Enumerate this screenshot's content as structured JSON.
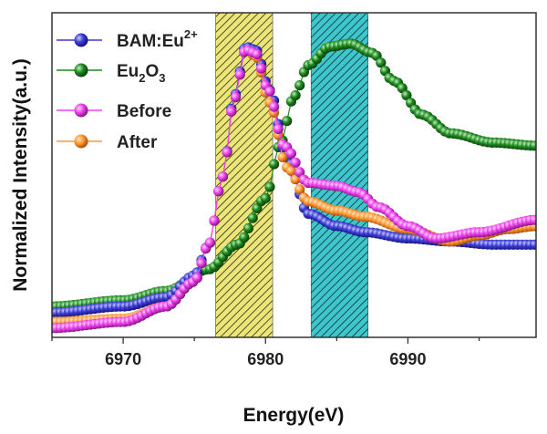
{
  "chart_data": {
    "type": "scatter",
    "xlabel": "Energy(eV)",
    "ylabel": "Normalized Intensity(a.u.)",
    "xlim": [
      6965,
      6999
    ],
    "ylim": [
      0,
      1.05
    ],
    "xticks": [
      6970,
      6980,
      6990
    ],
    "xtick_labels": [
      "6970",
      "6980",
      "6990"
    ],
    "grid": false,
    "legend_position": "top-left",
    "shaded_regions": [
      {
        "name": "yellow-band",
        "from": 6976.5,
        "to": 6980.5,
        "color": "#e8e070",
        "hatch": true
      },
      {
        "name": "cyan-band",
        "from": 6983.2,
        "to": 6987.2,
        "color": "#39c2c8",
        "hatch": true
      }
    ],
    "series": [
      {
        "name": "BAM:Eu2+",
        "label_main": "BAM:Eu",
        "label_sup": "2+",
        "color": "#3b3bd6",
        "points": [
          [
            6965,
            0.08
          ],
          [
            6970,
            0.1
          ],
          [
            6973,
            0.13
          ],
          [
            6975,
            0.2
          ],
          [
            6976,
            0.3
          ],
          [
            6977,
            0.52
          ],
          [
            6977.8,
            0.78
          ],
          [
            6978.6,
            0.94
          ],
          [
            6979.3,
            0.93
          ],
          [
            6980.3,
            0.8
          ],
          [
            6981.5,
            0.58
          ],
          [
            6983,
            0.4
          ],
          [
            6985,
            0.36
          ],
          [
            6987,
            0.34
          ],
          [
            6990,
            0.32
          ],
          [
            6993,
            0.31
          ],
          [
            6996,
            0.3
          ],
          [
            6999,
            0.3
          ]
        ]
      },
      {
        "name": "Eu2O3",
        "label_main": "Eu",
        "label_sub1": "2",
        "label_mid": "O",
        "label_sub2": "3",
        "color": "#1f8a1f",
        "points": [
          [
            6965,
            0.1
          ],
          [
            6970,
            0.12
          ],
          [
            6973,
            0.15
          ],
          [
            6976,
            0.22
          ],
          [
            6978,
            0.3
          ],
          [
            6980,
            0.45
          ],
          [
            6981,
            0.62
          ],
          [
            6982,
            0.78
          ],
          [
            6983,
            0.88
          ],
          [
            6984.5,
            0.94
          ],
          [
            6986,
            0.95
          ],
          [
            6987.5,
            0.92
          ],
          [
            6989,
            0.83
          ],
          [
            6991,
            0.72
          ],
          [
            6993,
            0.66
          ],
          [
            6996,
            0.63
          ],
          [
            6999,
            0.62
          ]
        ]
      },
      {
        "name": "Before",
        "label_main": "Before",
        "color": "#ee44ee",
        "points": [
          [
            6965,
            0.03
          ],
          [
            6970,
            0.05
          ],
          [
            6973,
            0.1
          ],
          [
            6975,
            0.18
          ],
          [
            6976,
            0.3
          ],
          [
            6977,
            0.52
          ],
          [
            6977.8,
            0.77
          ],
          [
            6978.6,
            0.93
          ],
          [
            6979.3,
            0.92
          ],
          [
            6980.2,
            0.8
          ],
          [
            6981.3,
            0.62
          ],
          [
            6983,
            0.5
          ],
          [
            6985,
            0.49
          ],
          [
            6986.5,
            0.47
          ],
          [
            6988,
            0.42
          ],
          [
            6990,
            0.36
          ],
          [
            6992,
            0.32
          ],
          [
            6995,
            0.34
          ],
          [
            6999,
            0.38
          ]
        ]
      },
      {
        "name": "After",
        "label_main": "After",
        "color": "#ff9933",
        "points": [
          [
            6965,
            0.05
          ],
          [
            6970,
            0.06
          ],
          [
            6973,
            0.1
          ],
          [
            6975,
            0.18
          ],
          [
            6976,
            0.3
          ],
          [
            6977,
            0.52
          ],
          [
            6977.8,
            0.77
          ],
          [
            6978.6,
            0.93
          ],
          [
            6979.3,
            0.91
          ],
          [
            6980.3,
            0.76
          ],
          [
            6981.5,
            0.55
          ],
          [
            6983,
            0.44
          ],
          [
            6985,
            0.41
          ],
          [
            6987,
            0.39
          ],
          [
            6990,
            0.35
          ],
          [
            6993,
            0.31
          ],
          [
            6995,
            0.33
          ],
          [
            6997,
            0.35
          ],
          [
            6999,
            0.36
          ]
        ]
      }
    ]
  }
}
